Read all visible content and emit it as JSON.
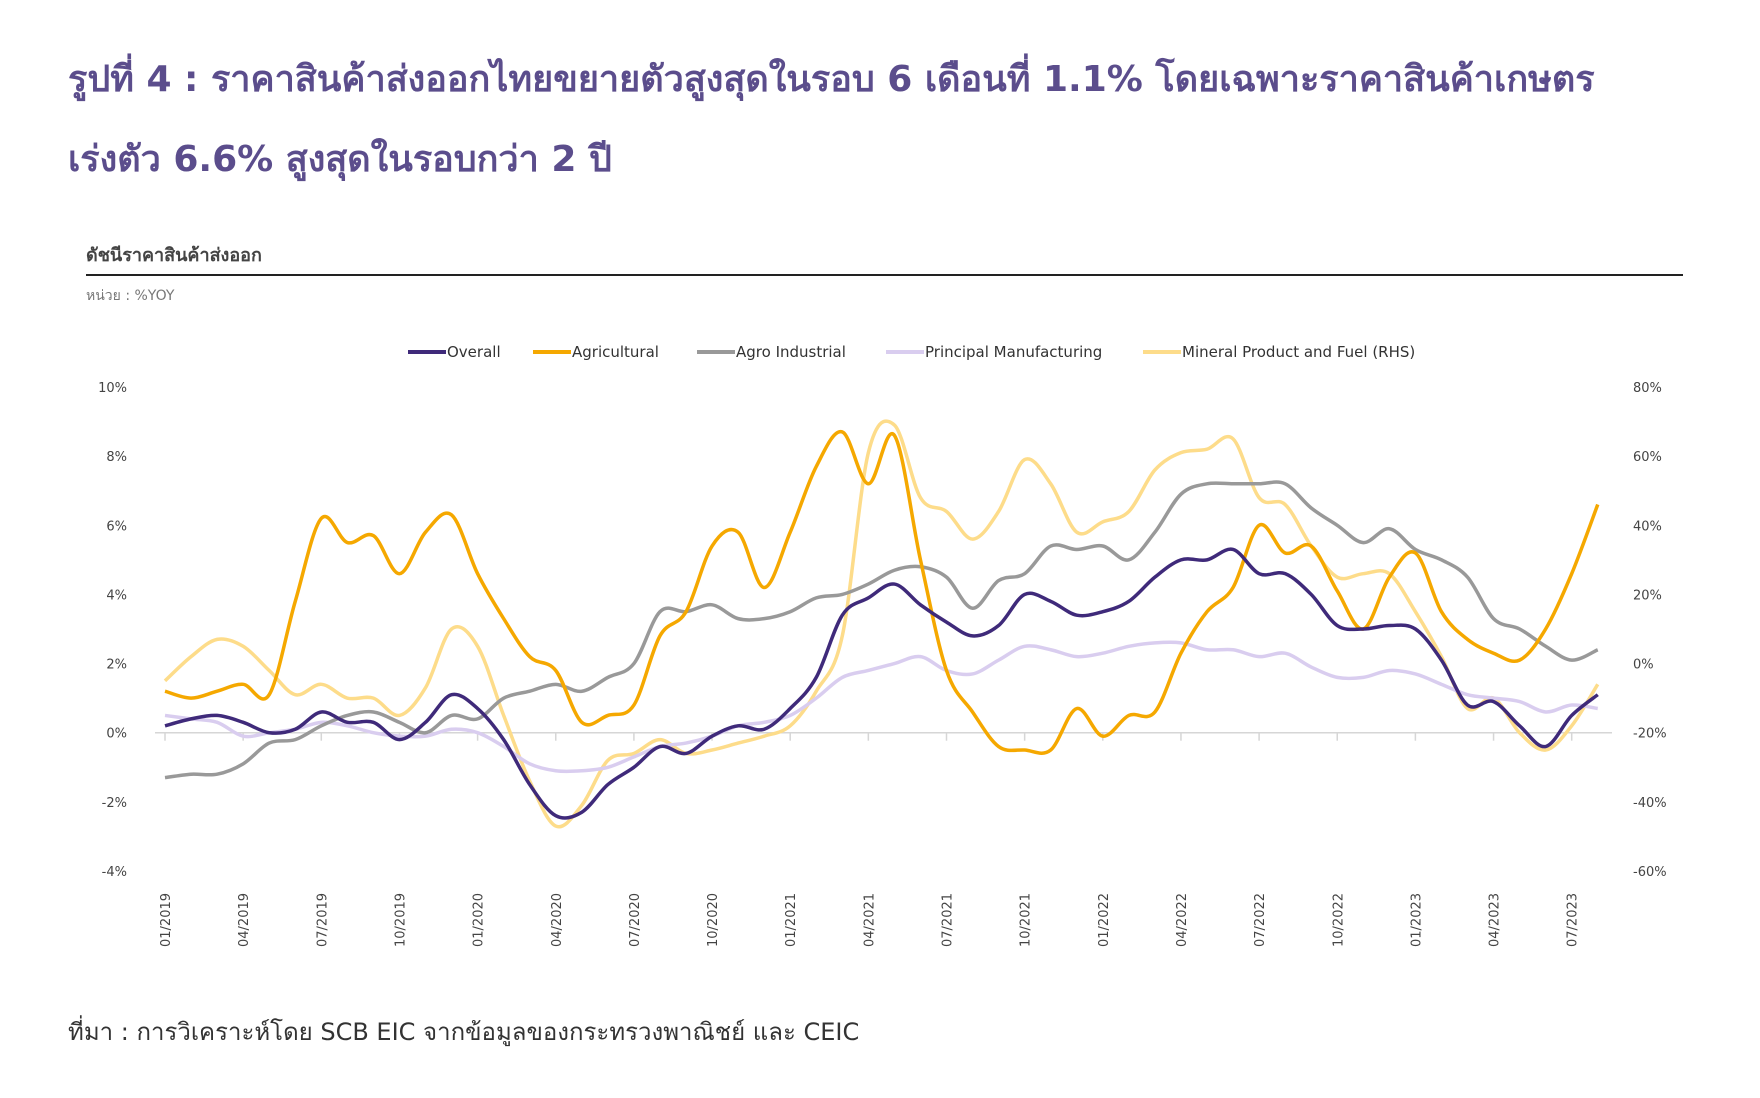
{
  "title_line1": "รูปที่ 4 : ราคาสินค้าส่งออกไทยขยายตัวสูงสุดในรอบ 6 เดือนที่ 1.1% โดยเฉพาะราคาสินค้าเกษตร",
  "title_line2": "เร่งตัว 6.6% สูงสุดในรอบกว่า 2 ปี",
  "source": "ที่มา : การวิเคราะห์โดย SCB EIC จากข้อมูลของกระทรวงพาณิชย์ และ CEIC",
  "chart_data": {
    "type": "line",
    "title": "ดัชนีราคาสินค้าส่งออก",
    "unit": "หน่วย : %YOY",
    "x_start": "01/2019",
    "x_end": "08/2023",
    "x_frequency": "monthly",
    "x_tick_labels": [
      "01/2019",
      "04/2019",
      "07/2019",
      "10/2019",
      "01/2020",
      "04/2020",
      "07/2020",
      "10/2020",
      "01/2021",
      "04/2021",
      "07/2021",
      "10/2021",
      "01/2022",
      "04/2022",
      "07/2022",
      "10/2022",
      "01/2023",
      "04/2023",
      "07/2023"
    ],
    "y_left": {
      "range": [
        -4,
        10
      ],
      "ticks": [
        "10%",
        "8%",
        "6%",
        "4%",
        "2%",
        "0%",
        "-2%",
        "-4%"
      ]
    },
    "y_right": {
      "range": [
        -60,
        80
      ],
      "ticks": [
        "80%",
        "60%",
        "40%",
        "20%",
        "0%",
        "-20%",
        "-40%",
        "-60%"
      ]
    },
    "grid": false,
    "legend_position": "top",
    "series": [
      {
        "name": "Overall",
        "axis": "left",
        "color": "#3f2a7a",
        "values": [
          0.2,
          0.4,
          0.5,
          0.3,
          0.0,
          0.1,
          0.6,
          0.3,
          0.3,
          -0.2,
          0.3,
          1.1,
          0.7,
          -0.2,
          -1.5,
          -2.4,
          -2.3,
          -1.5,
          -1.0,
          -0.4,
          -0.6,
          -0.1,
          0.2,
          0.1,
          0.7,
          1.6,
          3.4,
          3.9,
          4.3,
          3.7,
          3.2,
          2.8,
          3.1,
          4.0,
          3.8,
          3.4,
          3.5,
          3.8,
          4.5,
          5.0,
          5.0,
          5.3,
          4.6,
          4.6,
          4.0,
          3.1,
          3.0,
          3.1,
          3.0,
          2.1,
          0.8,
          0.9,
          0.2,
          -0.4,
          0.5,
          1.1
        ]
      },
      {
        "name": "Agricultural",
        "axis": "left",
        "color": "#f5a800",
        "values": [
          1.2,
          1.0,
          1.2,
          1.4,
          1.1,
          3.8,
          6.2,
          5.5,
          5.7,
          4.6,
          5.8,
          6.3,
          4.6,
          3.3,
          2.2,
          1.8,
          0.3,
          0.5,
          0.8,
          2.8,
          3.5,
          5.4,
          5.8,
          4.2,
          5.8,
          7.7,
          8.7,
          7.2,
          8.6,
          5.0,
          1.8,
          0.6,
          -0.4,
          -0.5,
          -0.5,
          0.7,
          -0.1,
          0.5,
          0.6,
          2.3,
          3.5,
          4.2,
          6.0,
          5.2,
          5.4,
          4.1,
          3.0,
          4.5,
          5.2,
          3.5,
          2.7,
          2.3,
          2.1,
          3.0,
          4.6,
          6.6
        ]
      },
      {
        "name": "Agro Industrial",
        "axis": "left",
        "color": "#999999",
        "values": [
          -1.3,
          -1.2,
          -1.2,
          -0.9,
          -0.3,
          -0.2,
          0.2,
          0.5,
          0.6,
          0.3,
          0.0,
          0.5,
          0.4,
          1.0,
          1.2,
          1.4,
          1.2,
          1.6,
          2.0,
          3.5,
          3.5,
          3.7,
          3.3,
          3.3,
          3.5,
          3.9,
          4.0,
          4.3,
          4.7,
          4.8,
          4.5,
          3.6,
          4.4,
          4.6,
          5.4,
          5.3,
          5.4,
          5.0,
          5.8,
          6.9,
          7.2,
          7.2,
          7.2,
          7.2,
          6.5,
          6.0,
          5.5,
          5.9,
          5.3,
          5.0,
          4.5,
          3.3,
          3.0,
          2.5,
          2.1,
          2.4
        ]
      },
      {
        "name": "Principal Manufacturing",
        "axis": "left",
        "color": "#d9cdef",
        "values": [
          0.5,
          0.4,
          0.3,
          -0.1,
          0.0,
          0.1,
          0.3,
          0.2,
          0.0,
          -0.1,
          -0.1,
          0.1,
          0.0,
          -0.4,
          -0.9,
          -1.1,
          -1.1,
          -1.0,
          -0.7,
          -0.4,
          -0.3,
          -0.1,
          0.2,
          0.3,
          0.5,
          1.0,
          1.6,
          1.8,
          2.0,
          2.2,
          1.8,
          1.7,
          2.1,
          2.5,
          2.4,
          2.2,
          2.3,
          2.5,
          2.6,
          2.6,
          2.4,
          2.4,
          2.2,
          2.3,
          1.9,
          1.6,
          1.6,
          1.8,
          1.7,
          1.4,
          1.1,
          1.0,
          0.9,
          0.6,
          0.8,
          0.7
        ]
      },
      {
        "name": "Mineral Product and Fuel (RHS)",
        "axis": "right",
        "color": "#fddc8a",
        "values": [
          -5,
          2,
          7,
          5,
          -2,
          -9,
          -6,
          -10,
          -10,
          -15,
          -7,
          10,
          5,
          -15,
          -34,
          -47,
          -41,
          -28,
          -26,
          -22,
          -26,
          -25,
          -23,
          -21,
          -18,
          -8,
          8,
          61,
          69,
          48,
          44,
          36,
          44,
          59,
          52,
          38,
          41,
          44,
          56,
          61,
          62,
          65,
          48,
          46,
          34,
          25,
          26,
          26,
          15,
          2,
          -13,
          -10,
          -20,
          -25,
          -18,
          -6
        ]
      }
    ]
  }
}
